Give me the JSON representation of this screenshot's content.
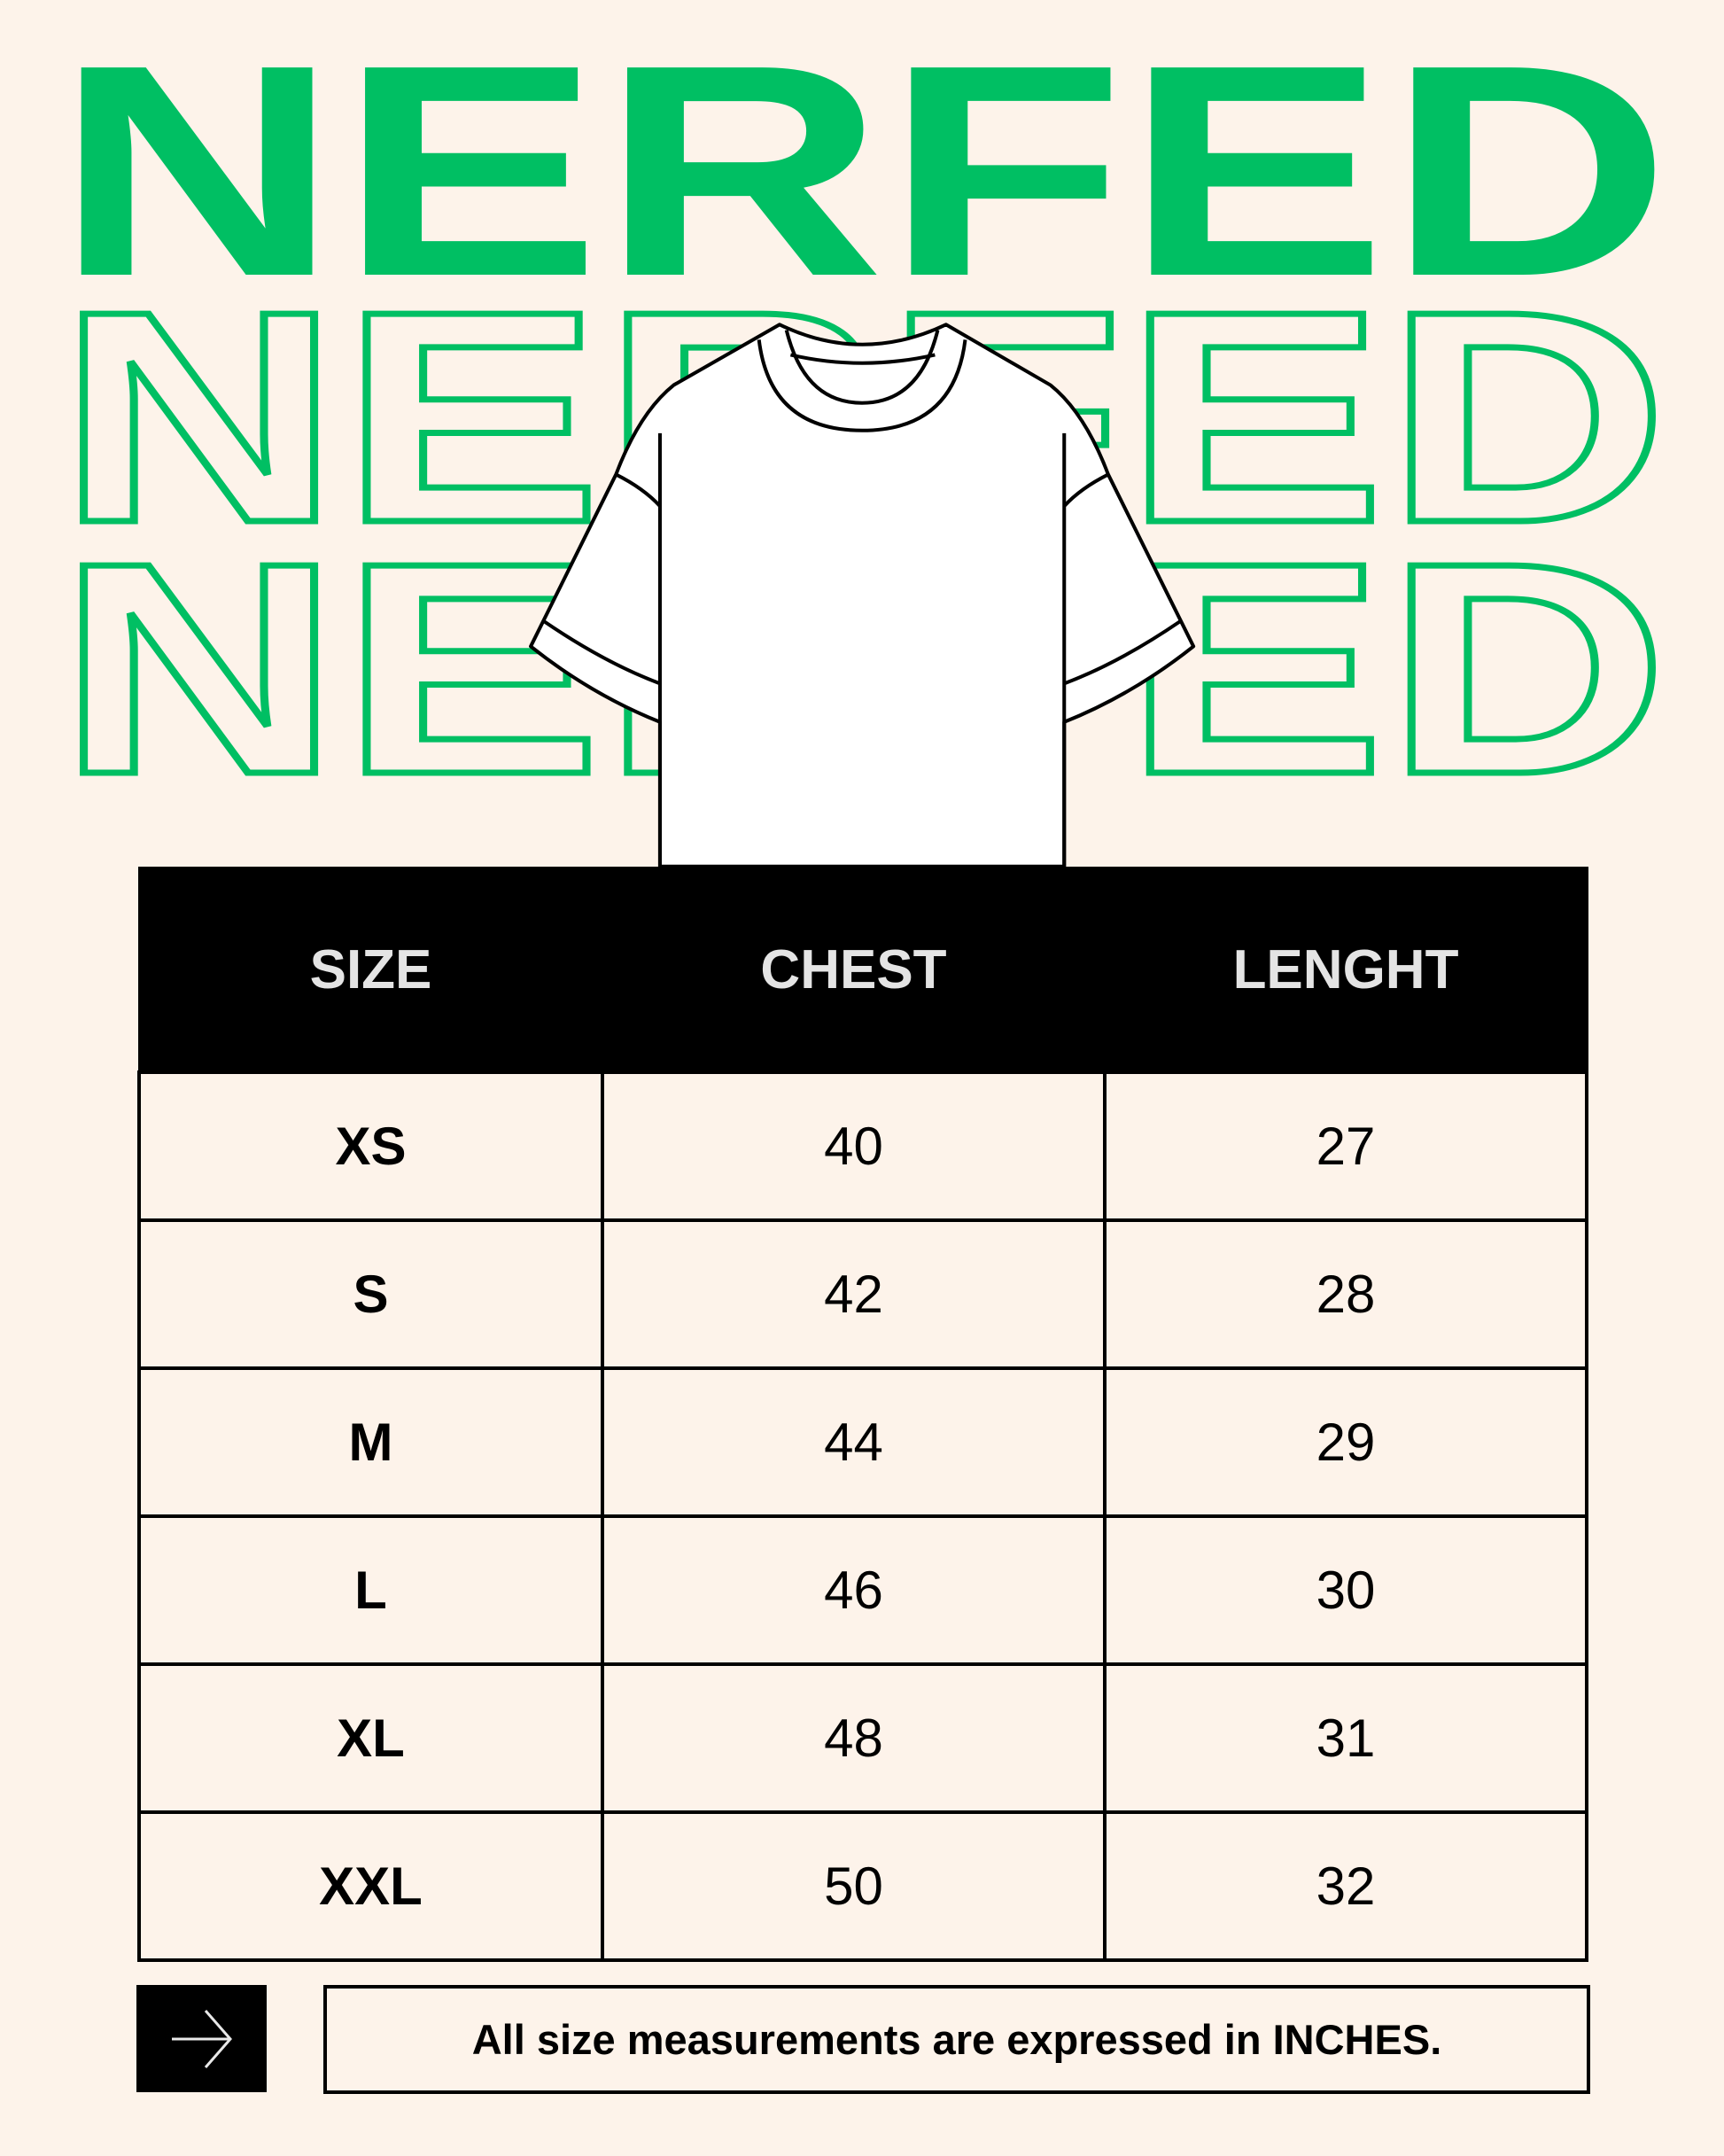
{
  "brand": {
    "name": "NERFED",
    "color": "#00bf63"
  },
  "table": {
    "headers": [
      "SIZE",
      "CHEST",
      "LENGHT"
    ],
    "rows": [
      {
        "size": "XS",
        "chest": "40",
        "length": "27"
      },
      {
        "size": "S",
        "chest": "42",
        "length": "28"
      },
      {
        "size": "M",
        "chest": "44",
        "length": "29"
      },
      {
        "size": "L",
        "chest": "46",
        "length": "30"
      },
      {
        "size": "XL",
        "chest": "48",
        "length": "31"
      },
      {
        "size": "XXL",
        "chest": "50",
        "length": "32"
      }
    ]
  },
  "footer": {
    "note": "All size measurements are expressed in INCHES.",
    "arrow_icon": "arrow-right-icon"
  }
}
